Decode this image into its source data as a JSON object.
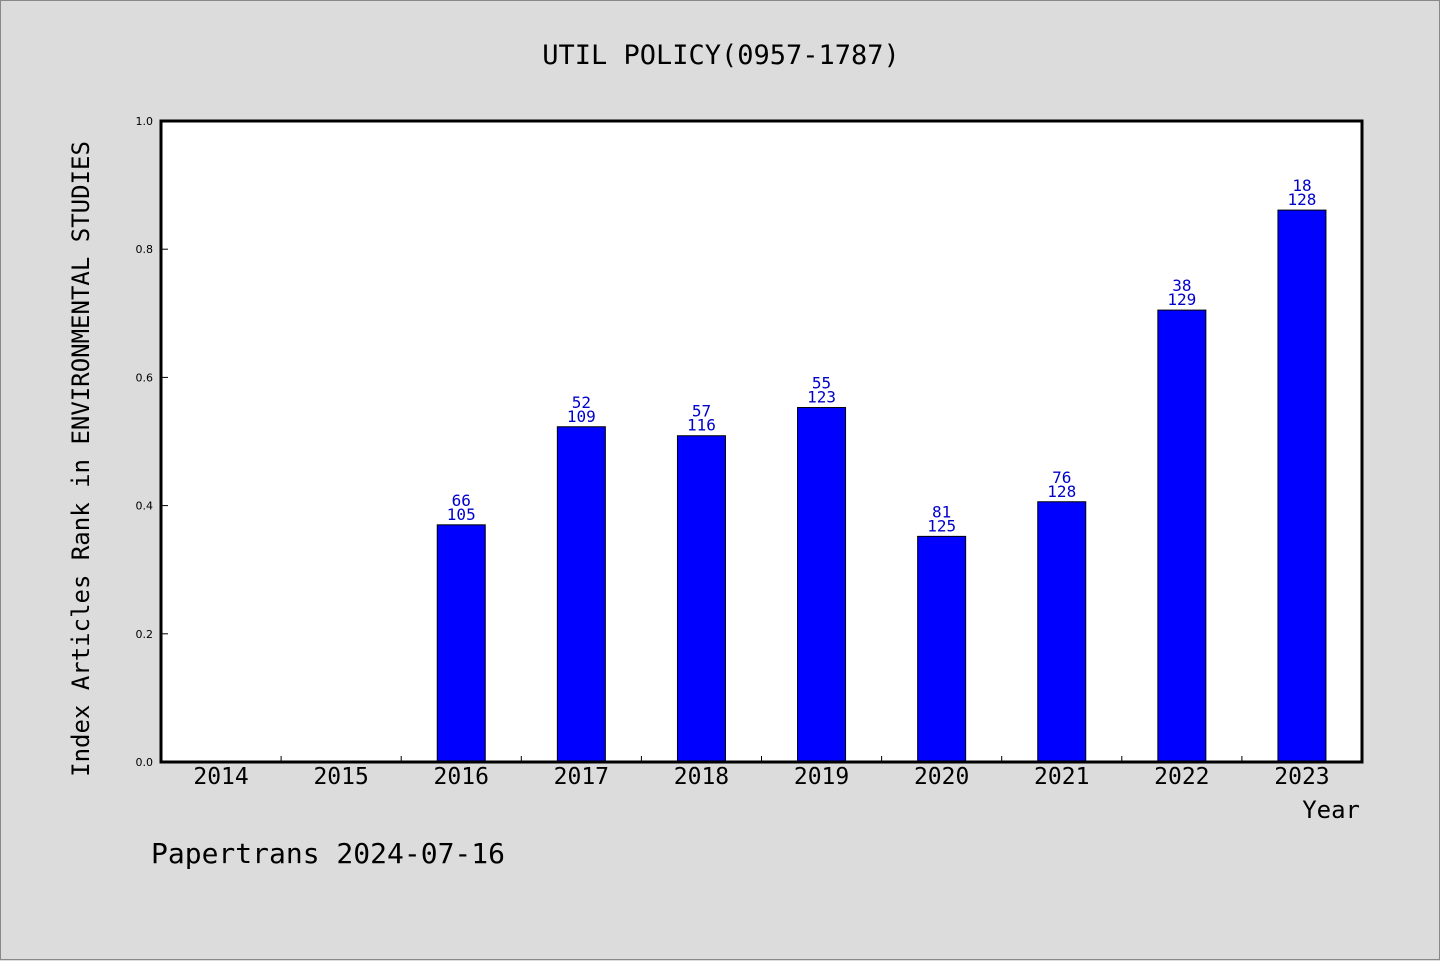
{
  "footer_text": "Papertrans 2024-07-16",
  "colors": {
    "background": "#dcdcdc",
    "plot_background": "#ffffff",
    "bar": "#0000ff",
    "bar_label": "#0000cc"
  },
  "chart_data": {
    "type": "bar",
    "title": "UTIL POLICY(0957-1787)",
    "xlabel": "Year",
    "ylabel": "Index Articles Rank in ENVIRONMENTAL STUDIES",
    "ylim": [
      0,
      1.0
    ],
    "yticks": [
      "0.0",
      "0.2",
      "0.4",
      "0.6",
      "0.8",
      "1.0"
    ],
    "categories": [
      "2014",
      "2015",
      "2016",
      "2017",
      "2018",
      "2019",
      "2020",
      "2021",
      "2022",
      "2023"
    ],
    "values": [
      null,
      null,
      0.37,
      0.523,
      0.509,
      0.553,
      0.352,
      0.406,
      0.705,
      0.861
    ],
    "label_top": [
      "",
      "",
      "66",
      "52",
      "57",
      "55",
      "81",
      "76",
      "38",
      "18"
    ],
    "label_bottom": [
      "",
      "",
      "105",
      "109",
      "116",
      "123",
      "125",
      "128",
      "129",
      "128"
    ],
    "grid": false,
    "legend": "none"
  }
}
